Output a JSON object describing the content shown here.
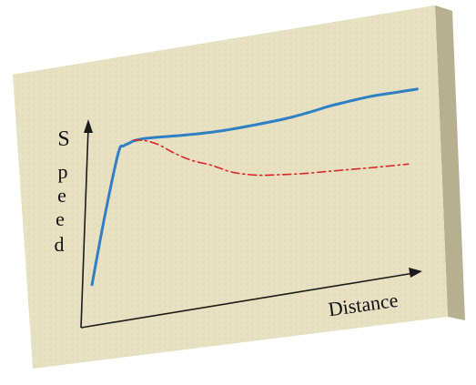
{
  "chart_data": {
    "type": "line",
    "xlabel": "Distance",
    "ylabel_letters": [
      "S",
      "p",
      "e",
      "e",
      "d"
    ],
    "xlim": [
      0,
      100
    ],
    "ylim": [
      0,
      100
    ],
    "series": [
      {
        "style": "solid",
        "color": "#2f7fc4",
        "x": [
          0,
          1.5,
          3.5,
          5,
          6.5,
          8,
          10,
          12,
          15,
          20,
          28,
          38,
          48,
          58,
          65,
          72,
          78,
          85,
          92,
          100
        ],
        "y": [
          5,
          45,
          82,
          86,
          87,
          88,
          88.5,
          88.5,
          88.2,
          87.5,
          86.5,
          86,
          86.5,
          87.5,
          89,
          91,
          92,
          93,
          93,
          93
        ]
      },
      {
        "style": "dash-dot",
        "color": "#d9262a",
        "x": [
          8,
          10,
          13,
          17,
          22,
          28,
          35,
          42,
          50,
          58,
          66,
          74,
          82,
          90,
          100
        ],
        "y": [
          88.5,
          88,
          86.5,
          83,
          77,
          71,
          66,
          60,
          56,
          54,
          52.5,
          51.5,
          50.5,
          49.5,
          48.5
        ]
      }
    ]
  },
  "colors": {
    "board_front": "#e8e2c4",
    "board_top": "#cfc8a5",
    "board_side": "#b8b291",
    "axis": "#1a1a1a"
  }
}
